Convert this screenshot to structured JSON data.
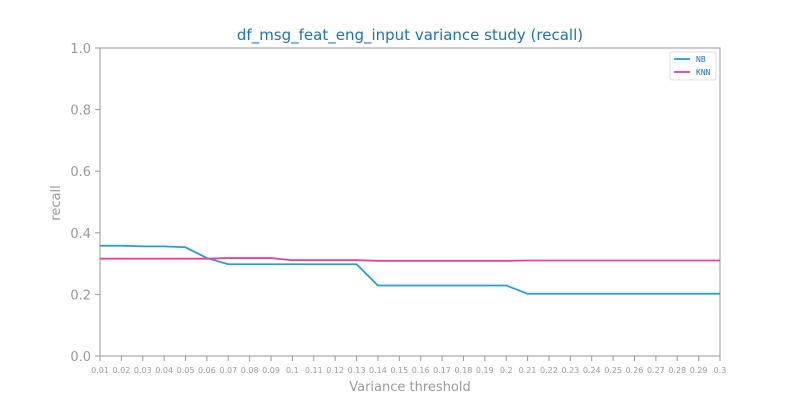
{
  "chart_data": {
    "type": "line",
    "title": "df_msg_feat_eng_input variance study (recall)",
    "xlabel": "Variance threshold",
    "ylabel": "recall",
    "ylim": [
      0.0,
      1.0
    ],
    "yticks": [
      "0.0",
      "0.2",
      "0.4",
      "0.6",
      "0.8",
      "1.0"
    ],
    "ytick_values": [
      0.0,
      0.2,
      0.4,
      0.6,
      0.8,
      1.0
    ],
    "categories": [
      "0.01",
      "0.02",
      "0.03",
      "0.04",
      "0.05",
      "0.06",
      "0.07",
      "0.08",
      "0.09",
      "0.1",
      "0.11",
      "0.12",
      "0.13",
      "0.14",
      "0.15",
      "0.16",
      "0.17",
      "0.18",
      "0.19",
      "0.2",
      "0.21",
      "0.22",
      "0.23",
      "0.24",
      "0.25",
      "0.26",
      "0.27",
      "0.28",
      "0.29",
      "0.3"
    ],
    "series": [
      {
        "name": "NB",
        "color": "#1fa0d6",
        "values": [
          0.358,
          0.358,
          0.356,
          0.356,
          0.353,
          0.318,
          0.298,
          0.298,
          0.298,
          0.298,
          0.298,
          0.298,
          0.298,
          0.229,
          0.229,
          0.229,
          0.229,
          0.229,
          0.229,
          0.229,
          0.202,
          0.202,
          0.202,
          0.202,
          0.202,
          0.202,
          0.202,
          0.202,
          0.202,
          0.202
        ]
      },
      {
        "name": "KNN",
        "color": "#e0459a",
        "values": [
          0.316,
          0.316,
          0.316,
          0.316,
          0.316,
          0.316,
          0.318,
          0.318,
          0.318,
          0.311,
          0.311,
          0.311,
          0.311,
          0.309,
          0.309,
          0.309,
          0.309,
          0.309,
          0.309,
          0.309,
          0.31,
          0.31,
          0.31,
          0.31,
          0.31,
          0.31,
          0.31,
          0.31,
          0.31,
          0.31
        ]
      }
    ],
    "legend_position": "top-right",
    "grid": false
  },
  "colors": {
    "title": "#1a73b8",
    "axis": "#999999",
    "legend_text": "#1a73b8"
  }
}
